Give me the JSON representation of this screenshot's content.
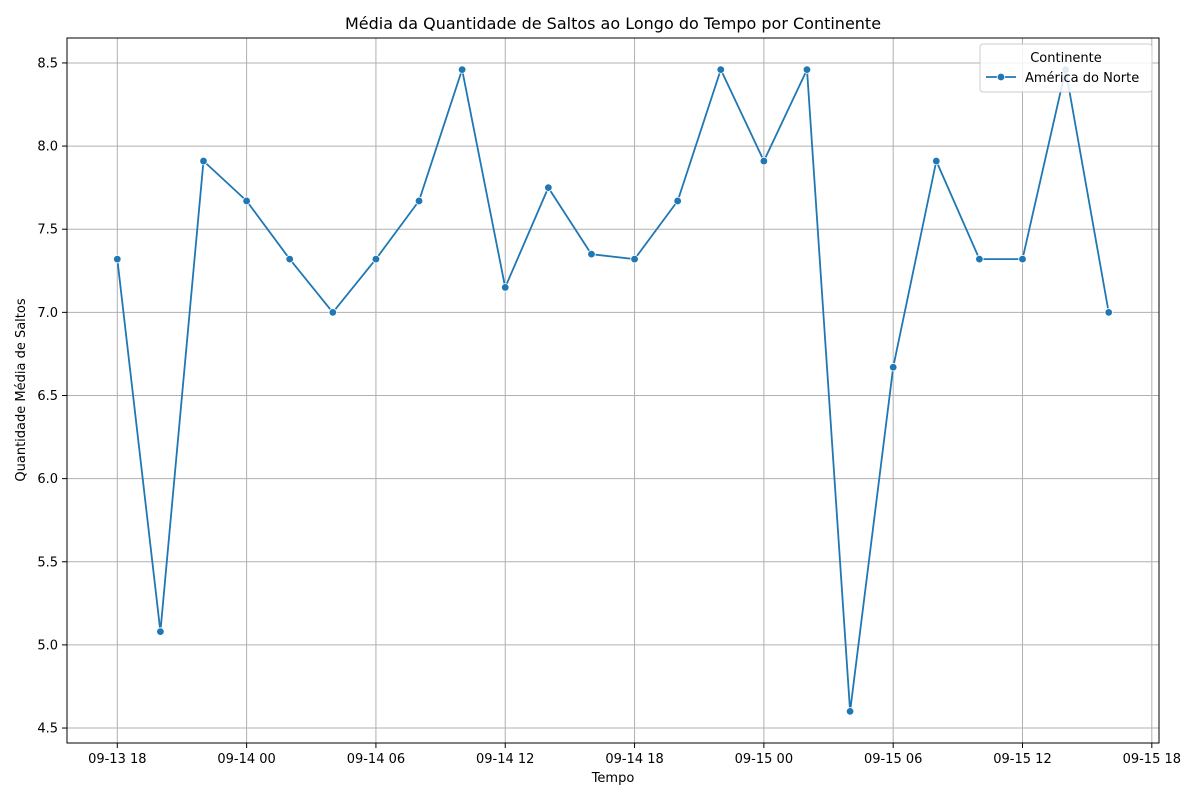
{
  "chart_data": {
    "type": "line",
    "title": "Média da Quantidade de Saltos ao Longo do Tempo por Continente",
    "xlabel": "Tempo",
    "ylabel": "Quantidade Média de Saltos",
    "x_range": [
      "2013-09-13 15:40",
      "2013-09-15 18:20"
    ],
    "ylim": [
      4.41,
      8.65
    ],
    "grid": true,
    "x_ticks": [
      {
        "value": "2013-09-13 18:00",
        "label": "09-13 18"
      },
      {
        "value": "2013-09-14 00:00",
        "label": "09-14 00"
      },
      {
        "value": "2013-09-14 06:00",
        "label": "09-14 06"
      },
      {
        "value": "2013-09-14 12:00",
        "label": "09-14 12"
      },
      {
        "value": "2013-09-14 18:00",
        "label": "09-14 18"
      },
      {
        "value": "2013-09-15 00:00",
        "label": "09-15 00"
      },
      {
        "value": "2013-09-15 06:00",
        "label": "09-15 06"
      },
      {
        "value": "2013-09-15 12:00",
        "label": "09-15 12"
      },
      {
        "value": "2013-09-15 18:00",
        "label": "09-15 18"
      }
    ],
    "y_ticks": [
      {
        "value": 4.5,
        "label": "4.5"
      },
      {
        "value": 5.0,
        "label": "5.0"
      },
      {
        "value": 5.5,
        "label": "5.5"
      },
      {
        "value": 6.0,
        "label": "6.0"
      },
      {
        "value": 6.5,
        "label": "6.5"
      },
      {
        "value": 7.0,
        "label": "7.0"
      },
      {
        "value": 7.5,
        "label": "7.5"
      },
      {
        "value": 8.0,
        "label": "8.0"
      },
      {
        "value": 8.5,
        "label": "8.5"
      }
    ],
    "legend": {
      "title": "Continente",
      "placement": "top-right"
    },
    "series": [
      {
        "name": "América do Norte",
        "color": "#1f77b4",
        "points": [
          {
            "x": "2013-09-13 18:00",
            "y": 7.32
          },
          {
            "x": "2013-09-13 20:00",
            "y": 5.08
          },
          {
            "x": "2013-09-13 22:00",
            "y": 7.91
          },
          {
            "x": "2013-09-14 00:00",
            "y": 7.67
          },
          {
            "x": "2013-09-14 02:00",
            "y": 7.32
          },
          {
            "x": "2013-09-14 04:00",
            "y": 7.0
          },
          {
            "x": "2013-09-14 06:00",
            "y": 7.32
          },
          {
            "x": "2013-09-14 08:00",
            "y": 7.67
          },
          {
            "x": "2013-09-14 10:00",
            "y": 8.46
          },
          {
            "x": "2013-09-14 12:00",
            "y": 7.15
          },
          {
            "x": "2013-09-14 14:00",
            "y": 7.75
          },
          {
            "x": "2013-09-14 16:00",
            "y": 7.35
          },
          {
            "x": "2013-09-14 18:00",
            "y": 7.32
          },
          {
            "x": "2013-09-14 20:00",
            "y": 7.67
          },
          {
            "x": "2013-09-14 22:00",
            "y": 8.46
          },
          {
            "x": "2013-09-15 00:00",
            "y": 7.91
          },
          {
            "x": "2013-09-15 02:00",
            "y": 8.46
          },
          {
            "x": "2013-09-15 04:00",
            "y": 4.6
          },
          {
            "x": "2013-09-15 06:00",
            "y": 6.67
          },
          {
            "x": "2013-09-15 08:00",
            "y": 7.91
          },
          {
            "x": "2013-09-15 10:00",
            "y": 7.32
          },
          {
            "x": "2013-09-15 12:00",
            "y": 7.32
          },
          {
            "x": "2013-09-15 14:00",
            "y": 8.46
          },
          {
            "x": "2013-09-15 16:00",
            "y": 7.0
          }
        ]
      }
    ]
  }
}
